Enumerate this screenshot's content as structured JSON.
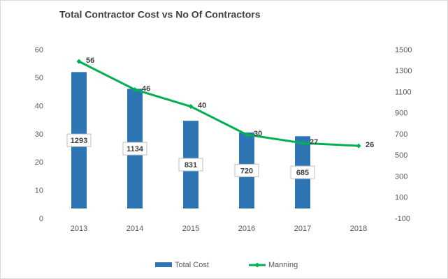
{
  "chart_data": {
    "type": "bar_line",
    "title": "Total Contractor Cost vs No Of Contractors",
    "categories": [
      "2013",
      "2014",
      "2015",
      "2016",
      "2017",
      "2018"
    ],
    "series": [
      {
        "name": "Total Cost",
        "type": "bar",
        "axis": "y2",
        "color": "#2e75b6",
        "values": [
          1293,
          1134,
          831,
          720,
          685,
          null
        ]
      },
      {
        "name": "Manning",
        "type": "line",
        "axis": "y",
        "color": "#00b050",
        "values": [
          56,
          46,
          40,
          30,
          27,
          26
        ]
      }
    ],
    "ylim": [
      0,
      60
    ],
    "yticks": [
      0,
      10,
      20,
      30,
      40,
      50,
      60
    ],
    "y2lim": [
      -100,
      1500
    ],
    "y2ticks": [
      -100,
      100,
      300,
      500,
      700,
      900,
      1100,
      1300,
      1500
    ],
    "grid": false,
    "legend": "bottom"
  }
}
